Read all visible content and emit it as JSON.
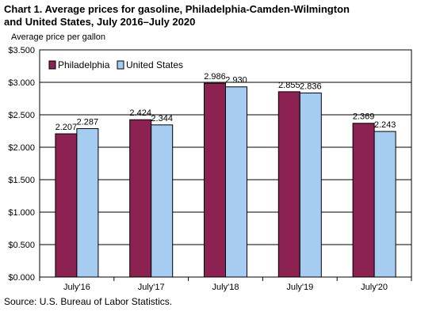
{
  "title_lines": [
    "Chart 1. Average prices for gasoline, Philadelphia-Camden-Wilmington",
    "and United States, July 2016–July 2020"
  ],
  "ylabel": "Average price per gallon",
  "source": "Source: U.S. Bureau of Labor Statistics.",
  "colors": {
    "philadelphia": "#8b2252",
    "united_states": "#a6cdf1"
  },
  "chart_data": {
    "type": "bar",
    "title": "Chart 1. Average prices for gasoline, Philadelphia-Camden-Wilmington and United States, July 2016–July 2020",
    "xlabel": "",
    "ylabel": "Average price per gallon",
    "categories": [
      "July'16",
      "July'17",
      "July'18",
      "July'19",
      "July'20"
    ],
    "series": [
      {
        "name": "Philadelphia",
        "values": [
          2.207,
          2.424,
          2.986,
          2.855,
          2.369
        ],
        "labels": [
          "2.207",
          "2.424",
          "2.986",
          "2.855",
          "2.369"
        ]
      },
      {
        "name": "United States",
        "values": [
          2.287,
          2.344,
          2.93,
          2.836,
          2.243
        ],
        "labels": [
          "2.287",
          "2.344",
          "2.930",
          "2.836",
          "2.243"
        ]
      }
    ],
    "ylim": [
      0,
      3.5
    ],
    "yticks": [
      0,
      0.5,
      1.0,
      1.5,
      2.0,
      2.5,
      3.0,
      3.5
    ],
    "ytick_labels": [
      "$0.000",
      "$0.500",
      "$1.000",
      "$1.500",
      "$2.000",
      "$2.500",
      "$3.000",
      "$3.500"
    ],
    "grid": true,
    "legend_position": "top-left"
  }
}
